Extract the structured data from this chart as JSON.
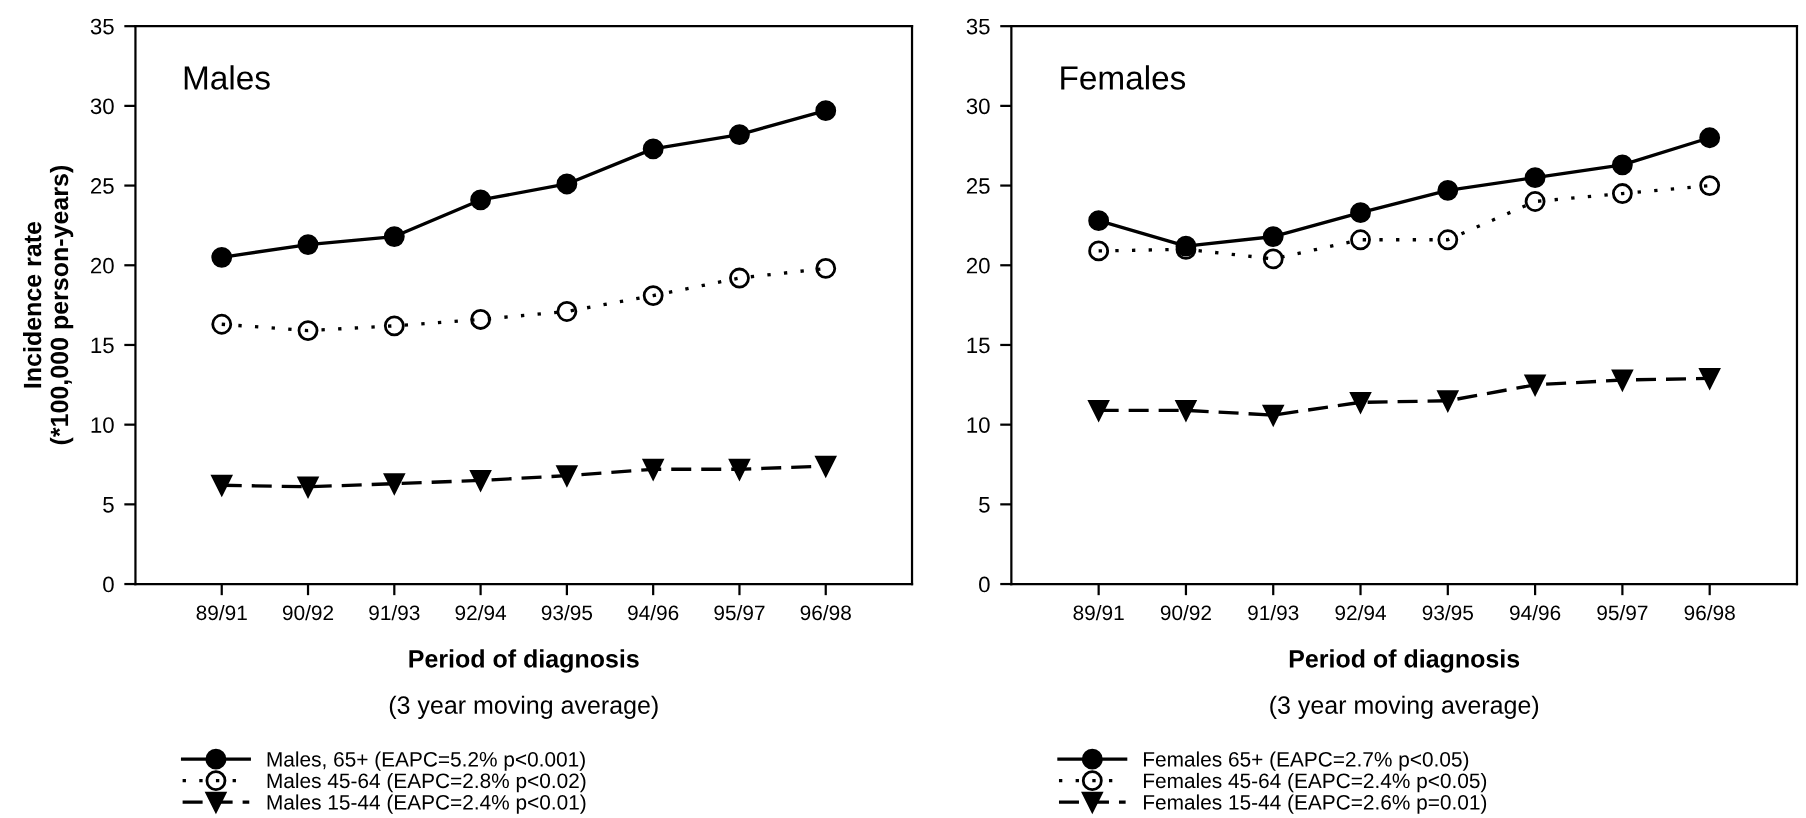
{
  "chart_data": [
    {
      "type": "line",
      "title": "Males",
      "xlabel": "Period of diagnosis",
      "annotations": [
        "(3 year moving average)"
      ],
      "ylabel": "Incidence rate\n(*100,000 person-years)",
      "categories": [
        "89/91",
        "90/92",
        "91/93",
        "92/94",
        "93/95",
        "94/96",
        "95/97",
        "96/98"
      ],
      "ylim": [
        0,
        35
      ],
      "yticks": [
        0,
        5,
        10,
        15,
        20,
        25,
        30,
        35
      ],
      "grid": false,
      "legend": "bottom",
      "series": [
        {
          "name": "Males, 65+ (EAPC=5.2% p<0.001)",
          "color": "#000000",
          "marker": "circle",
          "line_style": "solid",
          "values": [
            20.5,
            21.3,
            21.8,
            24.1,
            25.1,
            27.3,
            28.2,
            29.7
          ]
        },
        {
          "name": "Males 45-64 (EAPC=2.8% p<0.02)",
          "color": "#000000",
          "marker": "circle",
          "line_style": "dotted",
          "values": [
            16.3,
            15.9,
            16.2,
            16.6,
            17.1,
            18.1,
            19.2,
            19.8
          ]
        },
        {
          "name": "Males 15-44 (EAPC=2.4% p<0.01)",
          "color": "#000000",
          "marker": "triangle",
          "line_style": "dashed",
          "values": [
            6.2,
            6.1,
            6.3,
            6.5,
            6.8,
            7.2,
            7.2,
            7.4
          ]
        }
      ]
    },
    {
      "type": "line",
      "title": "Females",
      "xlabel": "Period of diagnosis",
      "annotations": [
        "(3 year moving average)"
      ],
      "categories": [
        "89/91",
        "90/92",
        "91/93",
        "92/94",
        "93/95",
        "94/96",
        "95/97",
        "96/98"
      ],
      "ylim": [
        0,
        35
      ],
      "yticks": [
        0,
        5,
        10,
        15,
        20,
        25,
        30,
        35
      ],
      "grid": false,
      "legend": "bottom",
      "series": [
        {
          "name": "Females 65+ (EAPC=2.7% p<0.05)",
          "color": "#000000",
          "marker": "circle",
          "line_style": "solid",
          "values": [
            22.8,
            21.2,
            21.8,
            23.3,
            24.7,
            25.5,
            26.3,
            28.0
          ]
        },
        {
          "name": "Females 45-64 (EAPC=2.4% p<0.05)",
          "color": "#000000",
          "marker": "circle",
          "line_style": "dotted",
          "values": [
            20.9,
            21.0,
            20.4,
            21.6,
            21.6,
            24.0,
            24.5,
            25.0
          ]
        },
        {
          "name": "Females 15-44 (EAPC=2.6% p=0.01)",
          "color": "#000000",
          "marker": "triangle",
          "line_style": "dashed",
          "values": [
            10.9,
            10.9,
            10.6,
            11.4,
            11.5,
            12.5,
            12.8,
            12.9
          ]
        }
      ]
    }
  ]
}
